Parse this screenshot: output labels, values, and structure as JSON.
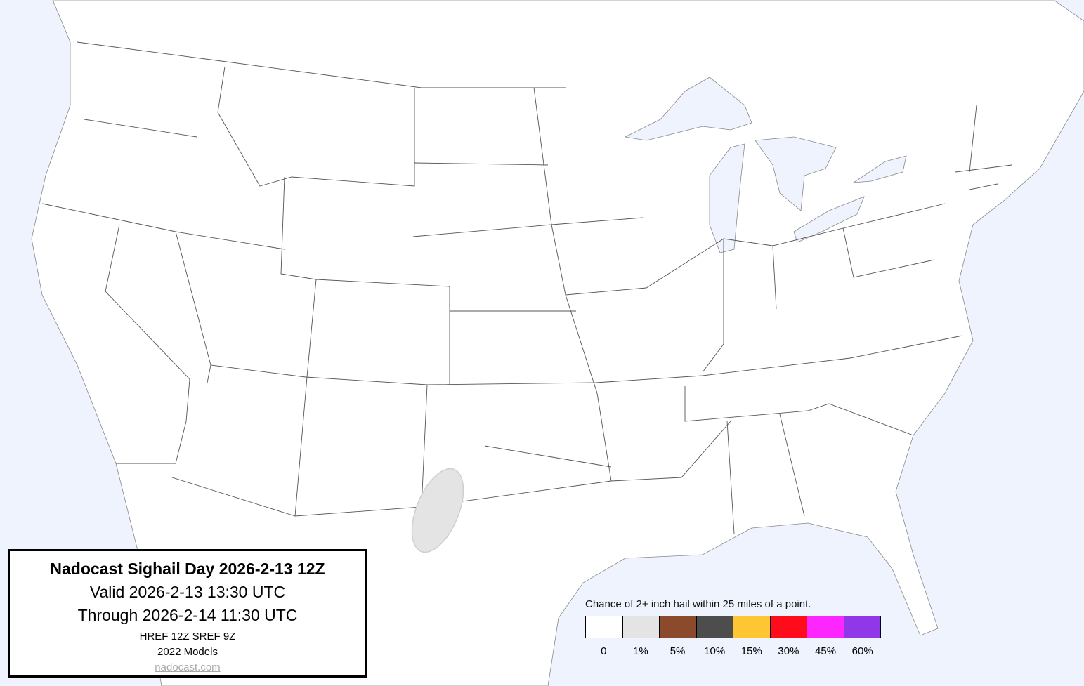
{
  "title_box": {
    "title": "Nadocast Sighail Day 2026-2-13 12Z",
    "valid": "Valid 2026-2-13 13:30 UTC",
    "through": "Through 2026-2-14 11:30 UTC",
    "models_run": "HREF 12Z SREF 9Z",
    "models_version": "2022 Models",
    "site": "nadocast.com"
  },
  "legend": {
    "title": "Chance of 2+ inch hail within 25 miles of a point.",
    "levels": [
      {
        "label": "0",
        "color": "#ffffff"
      },
      {
        "label": "1%",
        "color": "#e4e4e4"
      },
      {
        "label": "5%",
        "color": "#8b4a2b"
      },
      {
        "label": "10%",
        "color": "#4d4d4d"
      },
      {
        "label": "15%",
        "color": "#fec632"
      },
      {
        "label": "30%",
        "color": "#fe0c1c"
      },
      {
        "label": "45%",
        "color": "#fe26fe"
      },
      {
        "label": "60%",
        "color": "#9038e8"
      }
    ]
  },
  "map": {
    "water_color": "#eef3fd",
    "land_color": "#ffffff",
    "boundary_color": "#555555",
    "forecast_areas": [
      {
        "level": "1%",
        "region": "west Texas"
      }
    ]
  }
}
